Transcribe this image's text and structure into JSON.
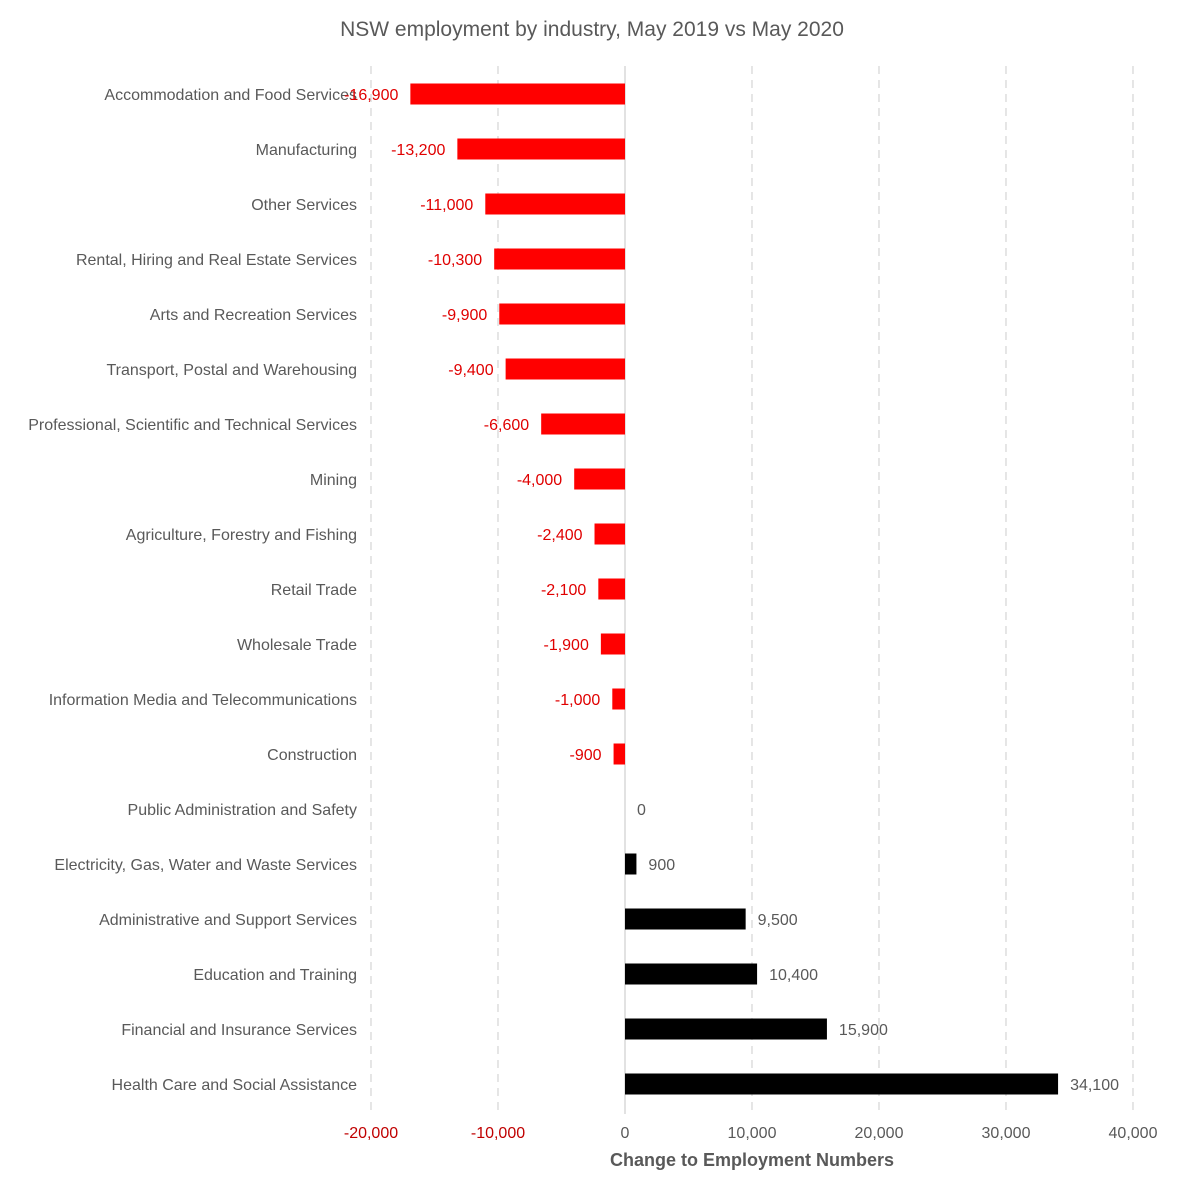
{
  "chart_data": {
    "type": "bar",
    "orientation": "horizontal",
    "title": "NSW employment by industry, May 2019 vs May 2020",
    "xlabel": "Change to Employment Numbers",
    "ylabel": "",
    "xlim": [
      -20000,
      40000
    ],
    "x_ticks": [
      -20000,
      -10000,
      0,
      10000,
      20000,
      30000,
      40000
    ],
    "x_tick_labels": [
      "-20,000",
      "-10,000",
      "0",
      "10,000",
      "20,000",
      "30,000",
      "40,000"
    ],
    "grid": "vertical dashed",
    "legend": "none",
    "categories": [
      "Accommodation and Food Services",
      "Manufacturing",
      "Other Services",
      "Rental, Hiring and Real Estate Services",
      "Arts and Recreation Services",
      "Transport, Postal and Warehousing",
      "Professional, Scientific and Technical Services",
      "Mining",
      "Agriculture, Forestry and Fishing",
      "Retail Trade",
      "Wholesale Trade",
      "Information Media and Telecommunications",
      "Construction",
      "Public Administration and Safety",
      "Electricity, Gas, Water and Waste Services",
      "Administrative and Support Services",
      "Education and Training",
      "Financial and Insurance Services",
      "Health Care and Social Assistance"
    ],
    "values": [
      -16900,
      -13200,
      -11000,
      -10300,
      -9900,
      -9400,
      -6600,
      -4000,
      -2400,
      -2100,
      -1900,
      -1000,
      -900,
      0,
      900,
      9500,
      10400,
      15900,
      34100
    ],
    "data_labels": [
      "-16,900",
      "-13,200",
      "-11,000",
      "-10,300",
      "-9,900",
      "-9,400",
      "-6,600",
      "-4,000",
      "-2,400",
      "-2,100",
      "-1,900",
      "-1,000",
      "-900",
      "0",
      "900",
      "9,500",
      "10,400",
      "15,900",
      "34,100"
    ],
    "colors": {
      "negative": "#ff0000",
      "positive": "#000000",
      "negative_label": "#e00000",
      "positive_label": "#595959",
      "positive_tick_label": "#595959",
      "negative_tick_label": "#c00000"
    }
  }
}
